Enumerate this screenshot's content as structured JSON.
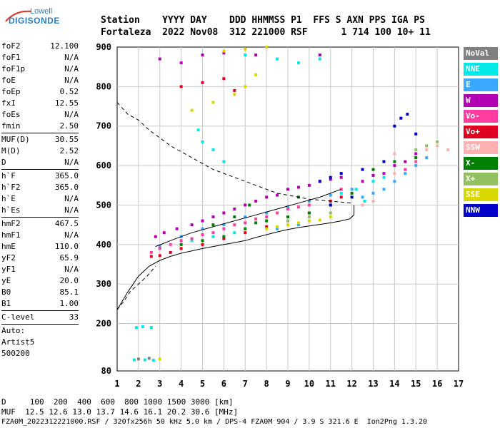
{
  "logo": {
    "line1": "Lowell",
    "line2": "DIGISONDE"
  },
  "header": {
    "line1": "Station    YYYY DAY    DDD HHMMSS P1  FFS S AXN PPS IGA PS",
    "line2": "Fortaleza  2022 Nov08  312 221000 RSF      1 714 100 10+ 11"
  },
  "params": {
    "group1": [
      {
        "k": "foF2",
        "v": "12.100"
      },
      {
        "k": "foF1",
        "v": "N/A"
      },
      {
        "k": "foF1p",
        "v": "N/A"
      },
      {
        "k": "foE",
        "v": "N/A"
      },
      {
        "k": "foEp",
        "v": "0.52"
      },
      {
        "k": "fxI",
        "v": "12.55"
      },
      {
        "k": "foEs",
        "v": "N/A"
      },
      {
        "k": "fmin",
        "v": "2.50"
      }
    ],
    "group2": [
      {
        "k": "MUF(D)",
        "v": "30.55"
      },
      {
        "k": "M(D)",
        "v": "2.52"
      },
      {
        "k": "D",
        "v": "N/A"
      }
    ],
    "group3": [
      {
        "k": "h`F",
        "v": "365.0"
      },
      {
        "k": "h`F2",
        "v": "365.0"
      },
      {
        "k": "h`E",
        "v": "N/A"
      },
      {
        "k": "h`Es",
        "v": "N/A"
      }
    ],
    "group4": [
      {
        "k": "hmF2",
        "v": "467.5"
      },
      {
        "k": "hmF1",
        "v": "N/A"
      },
      {
        "k": "hmE",
        "v": "110.0"
      },
      {
        "k": "yF2",
        "v": "65.9"
      },
      {
        "k": "yF1",
        "v": "N/A"
      },
      {
        "k": "yE",
        "v": "20.0"
      },
      {
        "k": "B0",
        "v": "85.1"
      },
      {
        "k": "B1",
        "v": "1.00"
      }
    ],
    "group5": [
      {
        "k": "C-level",
        "v": "33"
      }
    ],
    "auto": [
      "Auto:",
      "Artist5",
      "500200"
    ]
  },
  "legend": [
    {
      "label": "NoVal",
      "color": "#808080"
    },
    {
      "label": "NNE",
      "color": "#00e8e8"
    },
    {
      "label": "E",
      "color": "#3aa8ff"
    },
    {
      "label": "W",
      "color": "#b400b4"
    },
    {
      "label": "Vo-",
      "color": "#ff3ca0"
    },
    {
      "label": "Vo+",
      "color": "#e00020"
    },
    {
      "label": "SSW",
      "color": "#ffb0b0"
    },
    {
      "label": "X-",
      "color": "#008000"
    },
    {
      "label": "X+",
      "color": "#90c060"
    },
    {
      "label": "SSE",
      "color": "#d8d800"
    },
    {
      "label": "NNW",
      "color": "#0000c8"
    }
  ],
  "chart_data": {
    "type": "scatter",
    "title": "",
    "xlabel": "",
    "ylabel": "",
    "xlim": [
      1,
      17
    ],
    "ylim": [
      80,
      900
    ],
    "xticks": [
      1,
      2,
      3,
      4,
      5,
      6,
      7,
      8,
      9,
      10,
      11,
      12,
      13,
      14,
      15,
      16,
      17
    ],
    "yticks": [
      80,
      200,
      300,
      400,
      500,
      600,
      700,
      800,
      900
    ],
    "grid": true,
    "legend_position": "right",
    "series": [
      {
        "color_key": "NNE",
        "points": [
          [
            1.9,
            190
          ],
          [
            2.2,
            192
          ],
          [
            2.6,
            190
          ],
          [
            1.8,
            108
          ],
          [
            2.3,
            108
          ],
          [
            2.7,
            107
          ],
          [
            5.0,
            660
          ],
          [
            5.5,
            640
          ],
          [
            6.0,
            610
          ],
          [
            4.8,
            690
          ],
          [
            11.5,
            530
          ],
          [
            12.2,
            540
          ],
          [
            13.0,
            560
          ],
          [
            13.5,
            570
          ],
          [
            12.6,
            510
          ],
          [
            7.0,
            880
          ],
          [
            8.5,
            870
          ],
          [
            9.5,
            860
          ],
          [
            10.5,
            870
          ],
          [
            4.5,
            410
          ],
          [
            5.5,
            420
          ],
          [
            6.5,
            430
          ]
        ]
      },
      {
        "color_key": "E",
        "points": [
          [
            3.0,
            395
          ],
          [
            4.0,
            420
          ],
          [
            5.0,
            440
          ],
          [
            6.0,
            450
          ],
          [
            7.0,
            470
          ],
          [
            8.0,
            480
          ],
          [
            9.0,
            495
          ],
          [
            10.0,
            510
          ],
          [
            11.0,
            525
          ],
          [
            12.0,
            540
          ],
          [
            12.5,
            520
          ],
          [
            13.0,
            530
          ],
          [
            13.5,
            540
          ],
          [
            14.0,
            560
          ],
          [
            14.5,
            580
          ],
          [
            15.0,
            600
          ],
          [
            15.5,
            620
          ],
          [
            8.5,
            440
          ],
          [
            9.5,
            450
          ]
        ]
      },
      {
        "color_key": "W",
        "points": [
          [
            2.8,
            420
          ],
          [
            3.2,
            430
          ],
          [
            3.8,
            440
          ],
          [
            4.5,
            450
          ],
          [
            5.0,
            460
          ],
          [
            5.5,
            470
          ],
          [
            6.0,
            480
          ],
          [
            6.5,
            490
          ],
          [
            7.0,
            500
          ],
          [
            7.5,
            510
          ],
          [
            8.0,
            520
          ],
          [
            8.5,
            525
          ],
          [
            9.0,
            540
          ],
          [
            9.5,
            545
          ],
          [
            10.0,
            550
          ],
          [
            10.5,
            560
          ],
          [
            11.0,
            565
          ],
          [
            11.5,
            570
          ],
          [
            12.5,
            560
          ],
          [
            13.0,
            575
          ],
          [
            13.5,
            580
          ],
          [
            14.0,
            600
          ],
          [
            14.5,
            610
          ],
          [
            15.0,
            630
          ],
          [
            3.0,
            870
          ],
          [
            4.0,
            860
          ],
          [
            5.0,
            880
          ],
          [
            6.0,
            885
          ],
          [
            7.5,
            880
          ],
          [
            10.5,
            880
          ]
        ]
      },
      {
        "color_key": "Vo-",
        "points": [
          [
            2.6,
            380
          ],
          [
            3.0,
            390
          ],
          [
            3.5,
            400
          ],
          [
            4.0,
            410
          ],
          [
            4.5,
            415
          ],
          [
            5.0,
            425
          ],
          [
            5.5,
            430
          ],
          [
            6.0,
            440
          ],
          [
            6.5,
            450
          ],
          [
            7.0,
            455
          ],
          [
            7.5,
            465
          ],
          [
            8.0,
            470
          ],
          [
            8.5,
            480
          ],
          [
            9.0,
            490
          ],
          [
            9.5,
            495
          ],
          [
            10.0,
            500
          ],
          [
            11.5,
            540
          ],
          [
            14.5,
            590
          ],
          [
            15.0,
            610
          ]
        ]
      },
      {
        "color_key": "Vo+",
        "points": [
          [
            2.6,
            370
          ],
          [
            3.0,
            372
          ],
          [
            3.5,
            380
          ],
          [
            4.0,
            390
          ],
          [
            5.0,
            400
          ],
          [
            6.0,
            415
          ],
          [
            7.0,
            430
          ],
          [
            8.0,
            445
          ],
          [
            9.0,
            460
          ],
          [
            10.0,
            480
          ],
          [
            11.0,
            510
          ],
          [
            11.5,
            520
          ],
          [
            4.0,
            800
          ],
          [
            5.0,
            810
          ],
          [
            6.0,
            820
          ],
          [
            6.5,
            790
          ]
        ]
      },
      {
        "color_key": "SSW",
        "points": [
          [
            12.5,
            500
          ],
          [
            13.0,
            510
          ],
          [
            14.0,
            580
          ],
          [
            15.0,
            620
          ],
          [
            15.5,
            640
          ],
          [
            16.0,
            650
          ],
          [
            16.5,
            640
          ],
          [
            14.0,
            630
          ]
        ]
      },
      {
        "color_key": "X-",
        "points": [
          [
            4.0,
            400
          ],
          [
            5.0,
            410
          ],
          [
            6.0,
            420
          ],
          [
            7.0,
            440
          ],
          [
            7.5,
            455
          ],
          [
            8.0,
            460
          ],
          [
            9.0,
            470
          ],
          [
            10.0,
            480
          ],
          [
            11.0,
            500
          ],
          [
            12.0,
            530
          ],
          [
            13.0,
            590
          ],
          [
            14.0,
            610
          ],
          [
            15.0,
            620
          ],
          [
            5.5,
            450
          ],
          [
            6.5,
            470
          ],
          [
            7.2,
            500
          ],
          [
            9.5,
            520
          ]
        ]
      },
      {
        "color_key": "X+",
        "points": [
          [
            9.0,
            460
          ],
          [
            10.0,
            470
          ],
          [
            11.0,
            480
          ],
          [
            15.0,
            640
          ],
          [
            15.5,
            650
          ],
          [
            16.0,
            660
          ]
        ]
      },
      {
        "color_key": "SSE",
        "points": [
          [
            3.0,
            110
          ],
          [
            8.0,
            440
          ],
          [
            8.5,
            445
          ],
          [
            9.0,
            450
          ],
          [
            9.5,
            455
          ],
          [
            10.0,
            460
          ],
          [
            10.5,
            462
          ],
          [
            11.0,
            470
          ],
          [
            4.5,
            740
          ],
          [
            5.5,
            760
          ],
          [
            6.5,
            780
          ],
          [
            7.0,
            800
          ],
          [
            7.5,
            830
          ],
          [
            6.0,
            890
          ],
          [
            7.0,
            895
          ],
          [
            8.0,
            900
          ]
        ]
      },
      {
        "color_key": "NNW",
        "points": [
          [
            10.5,
            560
          ],
          [
            11.0,
            570
          ],
          [
            11.5,
            580
          ],
          [
            12.5,
            590
          ],
          [
            13.5,
            610
          ],
          [
            14.0,
            700
          ],
          [
            14.3,
            720
          ],
          [
            14.6,
            730
          ],
          [
            15.0,
            680
          ],
          [
            12.0,
            520
          ],
          [
            11.0,
            500
          ]
        ]
      },
      {
        "color_key": "NoVal",
        "points": [
          [
            2.0,
            110
          ],
          [
            2.5,
            112
          ]
        ]
      }
    ],
    "profile_solid": {
      "x": [
        1.0,
        1.5,
        2.0,
        2.5,
        3.0,
        3.5,
        4.0,
        4.5,
        5.0,
        5.5,
        6.0,
        6.5,
        7.0,
        7.5,
        8.0,
        8.5,
        9.0,
        9.5,
        10.0,
        10.5,
        11.0,
        11.5,
        11.9,
        12.1,
        12.1
      ],
      "y": [
        235,
        280,
        320,
        345,
        360,
        370,
        378,
        384,
        390,
        395,
        400,
        405,
        410,
        418,
        425,
        432,
        438,
        443,
        447,
        451,
        455,
        460,
        465,
        475,
        500
      ]
    },
    "profile_dashed_upper": {
      "x": [
        1.0,
        1.5,
        2.0,
        2.5,
        3.0,
        3.5,
        4.0,
        4.5,
        5.0,
        5.5,
        6.0,
        6.5,
        7.0,
        7.5,
        8.0,
        8.5,
        9.0,
        9.5,
        10.0,
        11.0,
        12.0
      ],
      "y": [
        760,
        730,
        715,
        690,
        670,
        650,
        635,
        620,
        605,
        590,
        580,
        570,
        560,
        550,
        540,
        530,
        525,
        520,
        515,
        510,
        505
      ]
    },
    "profile_dashed_lower": {
      "x": [
        1.0,
        1.3,
        1.6,
        2.0,
        2.4,
        2.8
      ],
      "y": [
        235,
        255,
        280,
        300,
        320,
        345
      ]
    },
    "trace_solid_middle": {
      "x": [
        2.8,
        3.5,
        4.5,
        5.5,
        6.5,
        7.5,
        8.5,
        9.5,
        10.5,
        11.5
      ],
      "y": [
        395,
        410,
        430,
        445,
        460,
        475,
        490,
        505,
        520,
        540
      ]
    }
  },
  "footer": {
    "line1": "D     100  200  400  600  800 1000 1500 3000 [km]",
    "line2": "MUF  12.5 12.6 13.0 13.7 14.6 16.1 20.2 30.6 [MHz]",
    "line3": "FZA0M_2022312221000.RSF / 320fx256h 50 kHz 5.0 km / DPS-4 FZA0M 904 / 3.9 S 321.6 E  Ion2Png 1.3.20"
  }
}
